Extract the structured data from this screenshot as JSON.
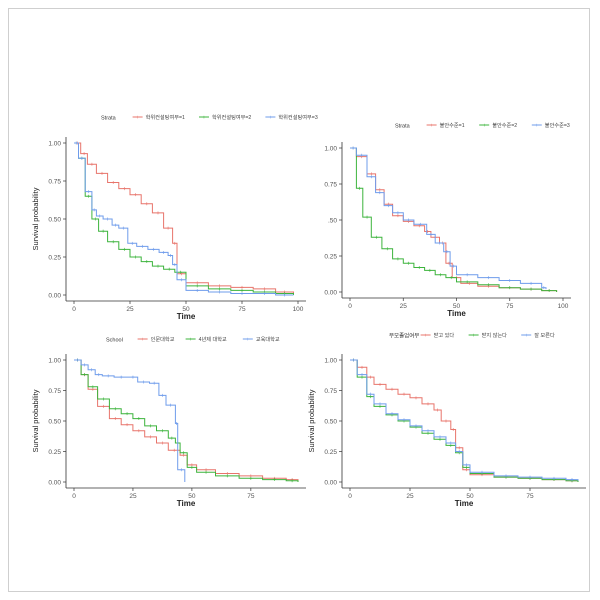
{
  "palette": {
    "red": "#e8746b",
    "green": "#3cb43c",
    "blue": "#6f9ceb",
    "axis": "#333333",
    "tick": "#555555"
  },
  "chart_data": [
    {
      "type": "line",
      "xlabel": "Time",
      "ylabel": "Survival probability",
      "xlim": [
        0,
        100
      ],
      "ylim": [
        0,
        1
      ],
      "xticks": [
        "0",
        "25",
        "50",
        "75",
        "100"
      ],
      "yticks": [
        "0.00",
        "0.25",
        "0.50",
        "0.75",
        "1.00"
      ],
      "legend_title": "Strata",
      "legend_position": "top",
      "series": [
        {
          "name": "학위컨설팅여부=1",
          "color": "red",
          "x": [
            0,
            3,
            6,
            10,
            15,
            20,
            25,
            30,
            35,
            40,
            44,
            46,
            50,
            60,
            70,
            80,
            90,
            98
          ],
          "y": [
            1.0,
            0.93,
            0.86,
            0.8,
            0.74,
            0.7,
            0.66,
            0.6,
            0.54,
            0.44,
            0.34,
            0.14,
            0.08,
            0.06,
            0.05,
            0.04,
            0.02,
            0.0
          ]
        },
        {
          "name": "학위컨설팅여부=2",
          "color": "green",
          "x": [
            0,
            2,
            5,
            8,
            11,
            15,
            20,
            25,
            30,
            35,
            40,
            45,
            50,
            60,
            70,
            80,
            90,
            98
          ],
          "y": [
            1.0,
            0.9,
            0.65,
            0.5,
            0.42,
            0.35,
            0.3,
            0.25,
            0.22,
            0.19,
            0.17,
            0.15,
            0.06,
            0.04,
            0.03,
            0.02,
            0.01,
            0.0
          ]
        },
        {
          "name": "학위컨설팅여부=3",
          "color": "blue",
          "x": [
            0,
            2,
            5,
            8,
            10,
            13,
            17,
            20,
            24,
            28,
            33,
            38,
            42,
            44,
            46,
            50,
            60,
            70,
            80,
            90,
            98
          ],
          "y": [
            1.0,
            0.9,
            0.68,
            0.56,
            0.52,
            0.5,
            0.46,
            0.44,
            0.34,
            0.32,
            0.3,
            0.28,
            0.26,
            0.2,
            0.1,
            0.03,
            0.02,
            0.01,
            0.01,
            0.0,
            0.0
          ]
        }
      ]
    },
    {
      "type": "line",
      "xlabel": "Time",
      "ylabel": "",
      "xlim": [
        0,
        100
      ],
      "ylim": [
        0,
        1
      ],
      "xticks": [
        "0",
        "25",
        "50",
        "75",
        "100"
      ],
      "yticks": [
        "0.00",
        "0.25",
        ".50",
        "0.75",
        "1.00"
      ],
      "legend_title": "Strata",
      "legend_position": "top",
      "series": [
        {
          "name": "불안수준=1",
          "color": "red",
          "x": [
            0,
            3,
            8,
            12,
            16,
            20,
            25,
            30,
            35,
            38,
            42,
            45,
            48,
            52,
            60,
            70,
            80,
            90,
            97
          ],
          "y": [
            1.0,
            0.94,
            0.82,
            0.71,
            0.61,
            0.53,
            0.49,
            0.46,
            0.42,
            0.38,
            0.34,
            0.2,
            0.1,
            0.06,
            0.04,
            0.03,
            0.02,
            0.01,
            0.0
          ]
        },
        {
          "name": "불안수준=2",
          "color": "green",
          "x": [
            0,
            3,
            6,
            10,
            15,
            20,
            25,
            30,
            35,
            40,
            45,
            50,
            60,
            70,
            80,
            90,
            97
          ],
          "y": [
            1.0,
            0.72,
            0.52,
            0.38,
            0.3,
            0.23,
            0.2,
            0.17,
            0.15,
            0.12,
            0.1,
            0.07,
            0.05,
            0.03,
            0.02,
            0.01,
            0.0
          ]
        },
        {
          "name": "불안수준=3",
          "color": "blue",
          "x": [
            0,
            3,
            8,
            12,
            16,
            20,
            25,
            30,
            36,
            40,
            44,
            47,
            50,
            60,
            70,
            80,
            90,
            92
          ],
          "y": [
            1.0,
            0.95,
            0.8,
            0.69,
            0.6,
            0.55,
            0.5,
            0.47,
            0.4,
            0.34,
            0.28,
            0.18,
            0.12,
            0.1,
            0.08,
            0.06,
            0.03,
            0.02
          ]
        }
      ]
    },
    {
      "type": "line",
      "xlabel": "Time",
      "ylabel": "Survival probability",
      "xlim": [
        0,
        95
      ],
      "ylim": [
        0,
        1
      ],
      "xticks": [
        "0",
        "25",
        "50",
        "75"
      ],
      "yticks": [
        "0.00",
        "0.25",
        "0.50",
        "0.75",
        "1.00"
      ],
      "legend_title": "School",
      "legend_position": "top",
      "series": [
        {
          "name": "인문대학교",
          "color": "red",
          "x": [
            0,
            3,
            6,
            10,
            15,
            20,
            25,
            30,
            35,
            40,
            45,
            48,
            52,
            60,
            70,
            80,
            90,
            95
          ],
          "y": [
            1.0,
            0.88,
            0.76,
            0.62,
            0.52,
            0.47,
            0.42,
            0.37,
            0.32,
            0.26,
            0.22,
            0.14,
            0.1,
            0.07,
            0.05,
            0.03,
            0.02,
            0.01
          ]
        },
        {
          "name": "4년제 대학교",
          "color": "green",
          "x": [
            0,
            3,
            6,
            10,
            15,
            20,
            25,
            30,
            35,
            40,
            43,
            45,
            48,
            52,
            60,
            70,
            80,
            90,
            95
          ],
          "y": [
            1.0,
            0.88,
            0.78,
            0.68,
            0.6,
            0.56,
            0.52,
            0.46,
            0.42,
            0.36,
            0.32,
            0.24,
            0.12,
            0.08,
            0.05,
            0.03,
            0.02,
            0.01,
            0.0
          ]
        },
        {
          "name": "교육대학교",
          "color": "blue",
          "x": [
            0,
            3,
            6,
            9,
            12,
            17,
            23,
            27,
            32,
            36,
            39,
            43,
            44,
            47
          ],
          "y": [
            1.0,
            0.96,
            0.92,
            0.88,
            0.87,
            0.86,
            0.86,
            0.82,
            0.81,
            0.71,
            0.63,
            0.48,
            0.1,
            0.0
          ]
        }
      ]
    },
    {
      "type": "line",
      "xlabel": "Time",
      "ylabel": "Survival probability",
      "xlim": [
        0,
        95
      ],
      "ylim": [
        0,
        1
      ],
      "xticks": [
        "0",
        "25",
        "50",
        "75"
      ],
      "yticks": [
        "0.00",
        "0.25",
        "0.50",
        "0.75",
        "1.00"
      ],
      "legend_title": "부모졸업여부",
      "legend_position": "top",
      "series": [
        {
          "name": "받고 있다",
          "color": "red",
          "x": [
            0,
            3,
            7,
            10,
            15,
            20,
            25,
            30,
            35,
            38,
            42,
            44,
            47,
            50,
            60,
            70,
            80,
            90,
            95
          ],
          "y": [
            1.0,
            0.94,
            0.86,
            0.8,
            0.76,
            0.72,
            0.69,
            0.64,
            0.59,
            0.5,
            0.43,
            0.28,
            0.1,
            0.06,
            0.04,
            0.03,
            0.02,
            0.01,
            0.01
          ]
        },
        {
          "name": "받지 않는다",
          "color": "green",
          "x": [
            0,
            3,
            7,
            10,
            15,
            20,
            25,
            30,
            35,
            40,
            44,
            47,
            50,
            60,
            70,
            80,
            90,
            95
          ],
          "y": [
            1.0,
            0.86,
            0.7,
            0.62,
            0.55,
            0.5,
            0.45,
            0.4,
            0.35,
            0.3,
            0.24,
            0.12,
            0.07,
            0.04,
            0.03,
            0.02,
            0.01,
            0.0
          ]
        },
        {
          "name": "잘 모른다",
          "color": "blue",
          "x": [
            0,
            3,
            7,
            10,
            15,
            20,
            25,
            30,
            35,
            40,
            44,
            47,
            50,
            60,
            70,
            80,
            90,
            95
          ],
          "y": [
            1.0,
            0.88,
            0.72,
            0.64,
            0.56,
            0.51,
            0.46,
            0.42,
            0.37,
            0.32,
            0.25,
            0.14,
            0.08,
            0.05,
            0.04,
            0.03,
            0.02,
            0.01
          ]
        }
      ]
    }
  ]
}
